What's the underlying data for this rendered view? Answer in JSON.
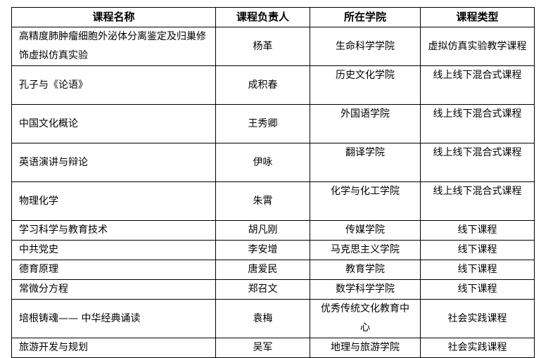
{
  "headers": [
    "课程名称",
    "课程负责人",
    "所在学院",
    "课程类型"
  ],
  "rows": [
    [
      "高精度肺肿瘤细胞外泌体分离鉴定及归巢修饰虚拟仿真实验",
      "杨革",
      "生命科学学院",
      "虚拟仿真实验教学课程"
    ],
    [
      "孔子与《论语》",
      "成积春",
      "历史文化学院",
      "线上线下混合式课程"
    ],
    [
      "中国文化概论",
      "王秀卿",
      "外国语学院",
      "线上线下混合式课程"
    ],
    [
      "英语演讲与辩论",
      "伊咏",
      "翻译学院",
      "线上线下混合式课程"
    ],
    [
      "物理化学",
      "朱霄",
      "化学与化工学院",
      "线上线下混合式课程"
    ],
    [
      "学习科学与教育技术",
      "胡凡刚",
      "传媒学院",
      "线下课程"
    ],
    [
      "中共党史",
      "李安增",
      "马克思主义学院",
      "线下课程"
    ],
    [
      "德育原理",
      "唐爱民",
      "教育学院",
      "线下课程"
    ],
    [
      "常微分方程",
      "郑召文",
      "数学科学学院",
      "线下课程"
    ],
    [
      "培根铸魂—— 中华经典诵读",
      "袁梅",
      "优秀传统文化教育中心",
      "社会实践课程"
    ],
    [
      "旅游开发与规划",
      "吴军",
      "地理与旅游学院",
      "社会实践课程"
    ]
  ]
}
